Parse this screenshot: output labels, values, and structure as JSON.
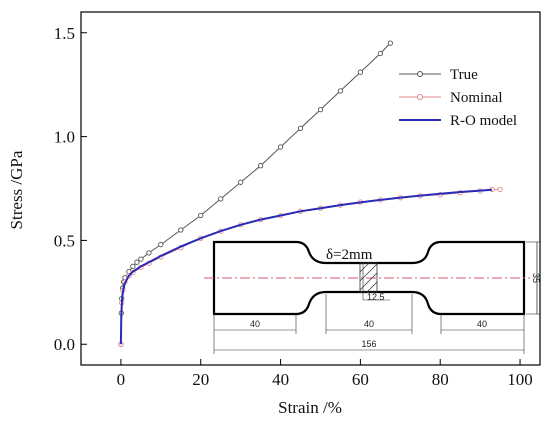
{
  "chart_data": {
    "type": "line",
    "xlabel": "Strain /%",
    "ylabel": "Stress /GPa",
    "xlim": [
      -10,
      105
    ],
    "ylim": [
      -0.1,
      1.6
    ],
    "xticks": [
      "0",
      "20",
      "40",
      "60",
      "80",
      "100"
    ],
    "xtick_values": [
      0,
      20,
      40,
      60,
      80,
      100
    ],
    "yticks": [
      "0.0",
      "0.5",
      "1.0",
      "1.5"
    ],
    "ytick_values": [
      0,
      0.5,
      1.0,
      1.5
    ],
    "grid": false,
    "legend_position": "top-right",
    "series": [
      {
        "name": "True",
        "color": "#555555",
        "marker": "circle",
        "x": [
          0,
          0.1,
          0.2,
          0.4,
          0.7,
          1,
          2,
          3,
          4,
          5,
          7,
          10,
          15,
          20,
          25,
          30,
          35,
          40,
          45,
          50,
          55,
          60,
          65,
          67.5
        ],
        "y": [
          0,
          0.15,
          0.22,
          0.27,
          0.3,
          0.32,
          0.35,
          0.375,
          0.395,
          0.41,
          0.44,
          0.48,
          0.55,
          0.62,
          0.7,
          0.78,
          0.86,
          0.95,
          1.04,
          1.13,
          1.22,
          1.31,
          1.4,
          1.45
        ]
      },
      {
        "name": "Nominal",
        "color": "#e08a8a",
        "marker": "circle",
        "x": [
          0,
          0.2,
          0.5,
          1,
          2,
          3,
          5,
          7,
          10,
          15,
          20,
          25,
          30,
          35,
          40,
          45,
          50,
          55,
          60,
          65,
          70,
          75,
          80,
          85,
          90,
          93,
          95
        ],
        "y": [
          0,
          0.2,
          0.26,
          0.3,
          0.33,
          0.345,
          0.37,
          0.39,
          0.42,
          0.465,
          0.51,
          0.545,
          0.575,
          0.6,
          0.62,
          0.64,
          0.655,
          0.67,
          0.685,
          0.695,
          0.705,
          0.715,
          0.72,
          0.73,
          0.738,
          0.745,
          0.745
        ]
      },
      {
        "name": "R-O model",
        "color": "#2a2ab8",
        "marker": "none",
        "x": [
          0,
          0.1,
          0.3,
          0.6,
          1,
          2,
          3,
          5,
          7,
          10,
          15,
          20,
          25,
          30,
          35,
          40,
          45,
          50,
          55,
          60,
          65,
          70,
          75,
          80,
          85,
          90,
          93
        ],
        "y": [
          0,
          0.14,
          0.22,
          0.265,
          0.295,
          0.33,
          0.35,
          0.375,
          0.395,
          0.425,
          0.47,
          0.51,
          0.545,
          0.575,
          0.6,
          0.62,
          0.64,
          0.655,
          0.67,
          0.683,
          0.695,
          0.706,
          0.716,
          0.725,
          0.733,
          0.74,
          0.744
        ]
      }
    ]
  },
  "inset": {
    "thickness_label": "δ=2mm",
    "dim_width": "35",
    "dim_gauge_width": "12.5",
    "dim_grip_left": "40",
    "dim_gauge_length": "40",
    "dim_grip_right": "40",
    "dim_total": "156"
  }
}
